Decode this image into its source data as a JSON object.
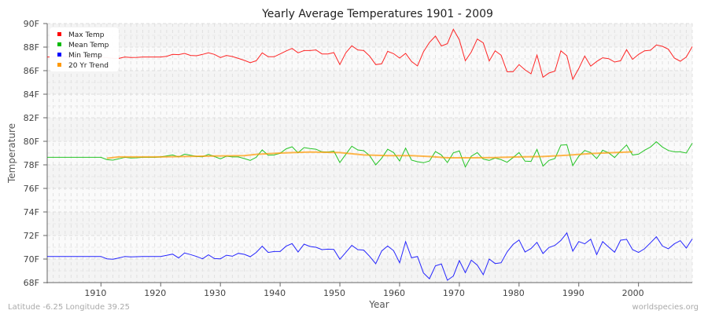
{
  "chart_data": {
    "type": "line",
    "title": "Yearly Average Temperatures 1901 - 2009",
    "xlabel": "Year",
    "ylabel": "Temperature",
    "xlim": [
      1901,
      2009
    ],
    "ylim": [
      68,
      90
    ],
    "x_ticks": [
      1910,
      1920,
      1930,
      1940,
      1950,
      1960,
      1970,
      1980,
      1990,
      2000
    ],
    "y_ticks": [
      "68F",
      "70F",
      "72F",
      "74F",
      "76F",
      "78F",
      "80F",
      "82F",
      "84F",
      "86F",
      "88F",
      "90F"
    ],
    "grid": true,
    "legend_position": "top-left",
    "x_start": 1901,
    "series": [
      {
        "name": "Max Temp",
        "color": "#ff0000",
        "values": [
          87.16,
          87.16,
          87.16,
          87.16,
          87.16,
          87.16,
          87.16,
          87.16,
          87.16,
          87.16,
          87.1,
          87.04,
          87.04,
          87.16,
          87.11,
          87.13,
          87.16,
          87.16,
          87.16,
          87.16,
          87.22,
          87.38,
          87.36,
          87.47,
          87.29,
          87.27,
          87.38,
          87.51,
          87.38,
          87.11,
          87.29,
          87.2,
          87.04,
          86.87,
          86.67,
          86.84,
          87.51,
          87.18,
          87.18,
          87.42,
          87.67,
          87.89,
          87.51,
          87.71,
          87.71,
          87.76,
          87.42,
          87.42,
          87.53,
          86.51,
          87.51,
          88.11,
          87.76,
          87.71,
          87.22,
          86.51,
          86.58,
          87.64,
          87.44,
          87.07,
          87.47,
          86.78,
          86.4,
          87.6,
          88.4,
          88.93,
          88.09,
          88.29,
          89.51,
          88.62,
          86.84,
          87.58,
          88.69,
          88.36,
          86.82,
          87.69,
          87.31,
          85.91,
          85.91,
          86.51,
          86.07,
          85.73,
          87.33,
          85.44,
          85.8,
          85.96,
          87.69,
          87.27,
          85.27,
          86.18,
          87.24,
          86.38,
          86.78,
          87.09,
          87.02,
          86.73,
          86.84,
          87.78,
          86.96,
          87.38,
          87.69,
          87.73,
          88.18,
          88.07,
          87.82,
          87.07,
          86.8,
          87.16,
          88.04
        ]
      },
      {
        "name": "Mean Temp",
        "color": "#00bb00",
        "values": [
          78.64,
          78.64,
          78.64,
          78.64,
          78.64,
          78.64,
          78.64,
          78.64,
          78.64,
          78.64,
          78.44,
          78.4,
          78.51,
          78.64,
          78.58,
          78.6,
          78.64,
          78.64,
          78.64,
          78.67,
          78.76,
          78.84,
          78.67,
          78.91,
          78.82,
          78.71,
          78.69,
          78.89,
          78.71,
          78.51,
          78.73,
          78.67,
          78.67,
          78.53,
          78.38,
          78.64,
          79.27,
          78.82,
          78.84,
          78.98,
          79.36,
          79.53,
          79.02,
          79.47,
          79.38,
          79.33,
          79.11,
          79.09,
          79.16,
          78.2,
          78.89,
          79.58,
          79.27,
          79.2,
          78.78,
          78.0,
          78.56,
          79.33,
          79.04,
          78.33,
          79.42,
          78.4,
          78.27,
          78.18,
          78.33,
          79.13,
          78.84,
          78.2,
          79.02,
          79.18,
          77.82,
          78.73,
          79.04,
          78.49,
          78.38,
          78.58,
          78.44,
          78.22,
          78.62,
          79.04,
          78.31,
          78.29,
          79.31,
          77.89,
          78.38,
          78.53,
          79.67,
          79.71,
          77.93,
          78.73,
          79.22,
          79.04,
          78.53,
          79.24,
          79.02,
          78.62,
          79.18,
          79.69,
          78.84,
          78.91,
          79.24,
          79.51,
          79.96,
          79.51,
          79.22,
          79.11,
          79.11,
          79.0,
          79.84
        ]
      },
      {
        "name": "Min Temp",
        "color": "#0000ff",
        "values": [
          70.22,
          70.22,
          70.22,
          70.22,
          70.22,
          70.22,
          70.22,
          70.22,
          70.22,
          70.22,
          70.02,
          69.98,
          70.09,
          70.22,
          70.18,
          70.2,
          70.22,
          70.22,
          70.22,
          70.22,
          70.31,
          70.42,
          70.09,
          70.51,
          70.38,
          70.22,
          70.02,
          70.36,
          70.04,
          70.02,
          70.33,
          70.24,
          70.49,
          70.4,
          70.2,
          70.56,
          71.09,
          70.56,
          70.64,
          70.64,
          71.09,
          71.31,
          70.6,
          71.27,
          71.07,
          71.0,
          70.8,
          70.84,
          70.82,
          69.98,
          70.56,
          71.16,
          70.8,
          70.76,
          70.22,
          69.6,
          70.69,
          71.11,
          70.71,
          69.69,
          71.49,
          70.11,
          70.22,
          68.82,
          68.33,
          69.42,
          69.58,
          68.2,
          68.56,
          69.87,
          68.84,
          69.91,
          69.49,
          68.67,
          70.0,
          69.62,
          69.69,
          70.6,
          71.24,
          71.62,
          70.6,
          70.89,
          71.42,
          70.47,
          70.98,
          71.16,
          71.58,
          72.22,
          70.67,
          71.49,
          71.29,
          71.69,
          70.38,
          71.49,
          71.02,
          70.58,
          71.6,
          71.67,
          70.8,
          70.56,
          70.87,
          71.38,
          71.89,
          71.11,
          70.87,
          71.29,
          71.56,
          70.93,
          71.71
        ]
      },
      {
        "name": "20 Yr Trend",
        "color": "#ff9900",
        "x": [
          1911,
          1913,
          1920,
          1930,
          1934,
          1936,
          1940,
          1945,
          1950,
          1954,
          1958,
          1962,
          1965,
          1968,
          1972,
          1976,
          1980,
          1984,
          1988,
          1992,
          1996,
          1999
        ],
        "values": [
          78.56,
          78.67,
          78.67,
          78.76,
          78.78,
          78.89,
          79.0,
          79.09,
          79.04,
          78.84,
          78.78,
          78.78,
          78.71,
          78.6,
          78.6,
          78.62,
          78.67,
          78.71,
          78.82,
          78.96,
          79.04,
          79.11
        ]
      }
    ]
  },
  "footer": {
    "location": "Latitude -6.25 Longitude 39.25",
    "site": "worldspecies.org"
  }
}
